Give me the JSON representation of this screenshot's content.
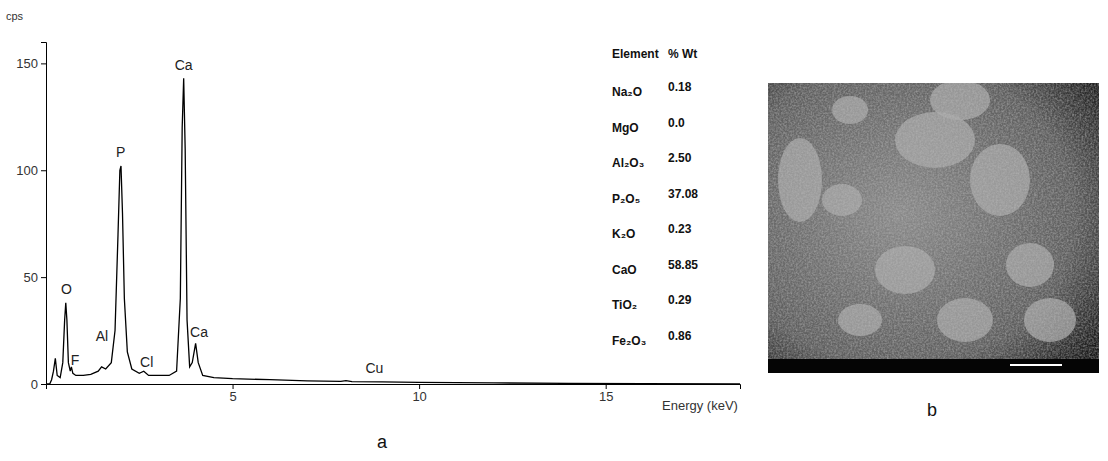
{
  "chart_data": {
    "type": "line",
    "xlabel": "Energy (keV)",
    "ylabel": "cps",
    "color": "#000000",
    "xlim": [
      0,
      18.6
    ],
    "ylim": [
      0,
      160
    ],
    "xticks": [
      5,
      10,
      15
    ],
    "yticks": [
      0,
      50,
      100,
      150
    ],
    "grid": false,
    "x": [
      0.0,
      0.1,
      0.15,
      0.2,
      0.25,
      0.3,
      0.38,
      0.45,
      0.5,
      0.53,
      0.56,
      0.6,
      0.65,
      0.68,
      0.72,
      0.8,
      1.0,
      1.2,
      1.4,
      1.49,
      1.6,
      1.75,
      1.85,
      1.93,
      1.98,
      2.01,
      2.05,
      2.1,
      2.18,
      2.3,
      2.5,
      2.62,
      2.75,
      3.0,
      3.3,
      3.5,
      3.6,
      3.65,
      3.69,
      3.73,
      3.78,
      3.85,
      3.92,
      4.01,
      4.08,
      4.2,
      4.5,
      5.0,
      6.0,
      7.0,
      7.9,
      8.04,
      8.2,
      9.0,
      10.0,
      11.0,
      12.0,
      14.0,
      16.0,
      18.6
    ],
    "values": [
      0,
      0,
      2,
      6,
      12,
      4,
      3,
      10,
      30,
      38,
      30,
      10,
      6,
      8,
      5,
      4,
      4,
      4.5,
      6,
      8,
      7,
      10,
      25,
      70,
      100,
      102,
      80,
      40,
      15,
      7,
      5,
      6,
      4,
      4,
      4,
      6,
      40,
      120,
      143,
      110,
      30,
      8,
      10,
      19,
      10,
      4,
      3,
      2.5,
      2,
      1.5,
      1.2,
      1.6,
      1.1,
      1,
      0.8,
      0.6,
      0.5,
      0.3,
      0.2,
      0.1
    ],
    "annotations": [
      {
        "text": "O",
        "x": 0.55,
        "y": 42
      },
      {
        "text": "F",
        "x": 0.78,
        "y": 9
      },
      {
        "text": "Al",
        "x": 1.5,
        "y": 20
      },
      {
        "text": "P",
        "x": 2.0,
        "y": 106
      },
      {
        "text": "Cl",
        "x": 2.7,
        "y": 8
      },
      {
        "text": "Ca",
        "x": 3.69,
        "y": 147
      },
      {
        "text": "Ca",
        "x": 4.1,
        "y": 22
      },
      {
        "text": "Cu",
        "x": 8.8,
        "y": 5
      }
    ]
  },
  "table": {
    "header": [
      "Element",
      "% Wt"
    ],
    "rows": [
      [
        "Na₂O",
        "0.18"
      ],
      [
        "MgO",
        "0.0"
      ],
      [
        "Al₂O₃",
        "2.50"
      ],
      [
        "P₂O₅",
        "37.08"
      ],
      [
        "K₂O",
        "0.23"
      ],
      [
        "CaO",
        "58.85"
      ],
      [
        "TiO₂",
        "0.29"
      ],
      [
        "Fe₂O₃",
        "0.86"
      ]
    ]
  },
  "panel_labels": [
    "a",
    "b"
  ]
}
